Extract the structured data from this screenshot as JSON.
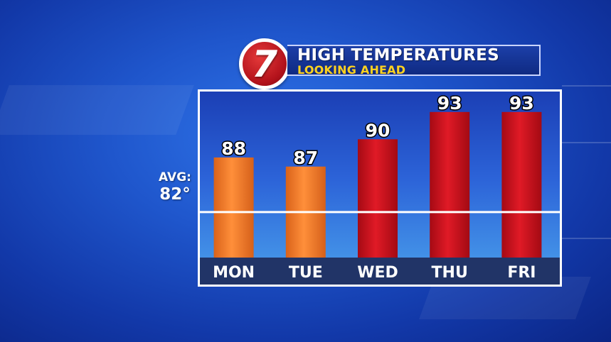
{
  "header": {
    "logo_text": "7",
    "title": "HIGH TEMPERATURES",
    "subtitle": "LOOKING AHEAD"
  },
  "average": {
    "label": "AVG:",
    "value_text": "82°",
    "value": 82
  },
  "colors": {
    "warm_bar": "#f07a22",
    "hot_bar": "#c8101c",
    "logo_red": "#b3121b",
    "subtitle_yellow": "#ffd21f"
  },
  "chart_data": {
    "type": "bar",
    "title": "HIGH TEMPERATURES",
    "subtitle": "LOOKING AHEAD",
    "categories": [
      "MON",
      "TUE",
      "WED",
      "THU",
      "FRI"
    ],
    "values": [
      88,
      87,
      90,
      93,
      93
    ],
    "value_labels": [
      "88",
      "87",
      "90",
      "93",
      "93"
    ],
    "bar_colors": [
      "#f07a22",
      "#f07a22",
      "#c8101c",
      "#c8101c",
      "#c8101c"
    ],
    "reference_line": {
      "label": "AVG:",
      "value": 82,
      "value_text": "82°"
    },
    "ylim": [
      77,
      94
    ],
    "grid": false,
    "xlabel": "",
    "ylabel": ""
  }
}
